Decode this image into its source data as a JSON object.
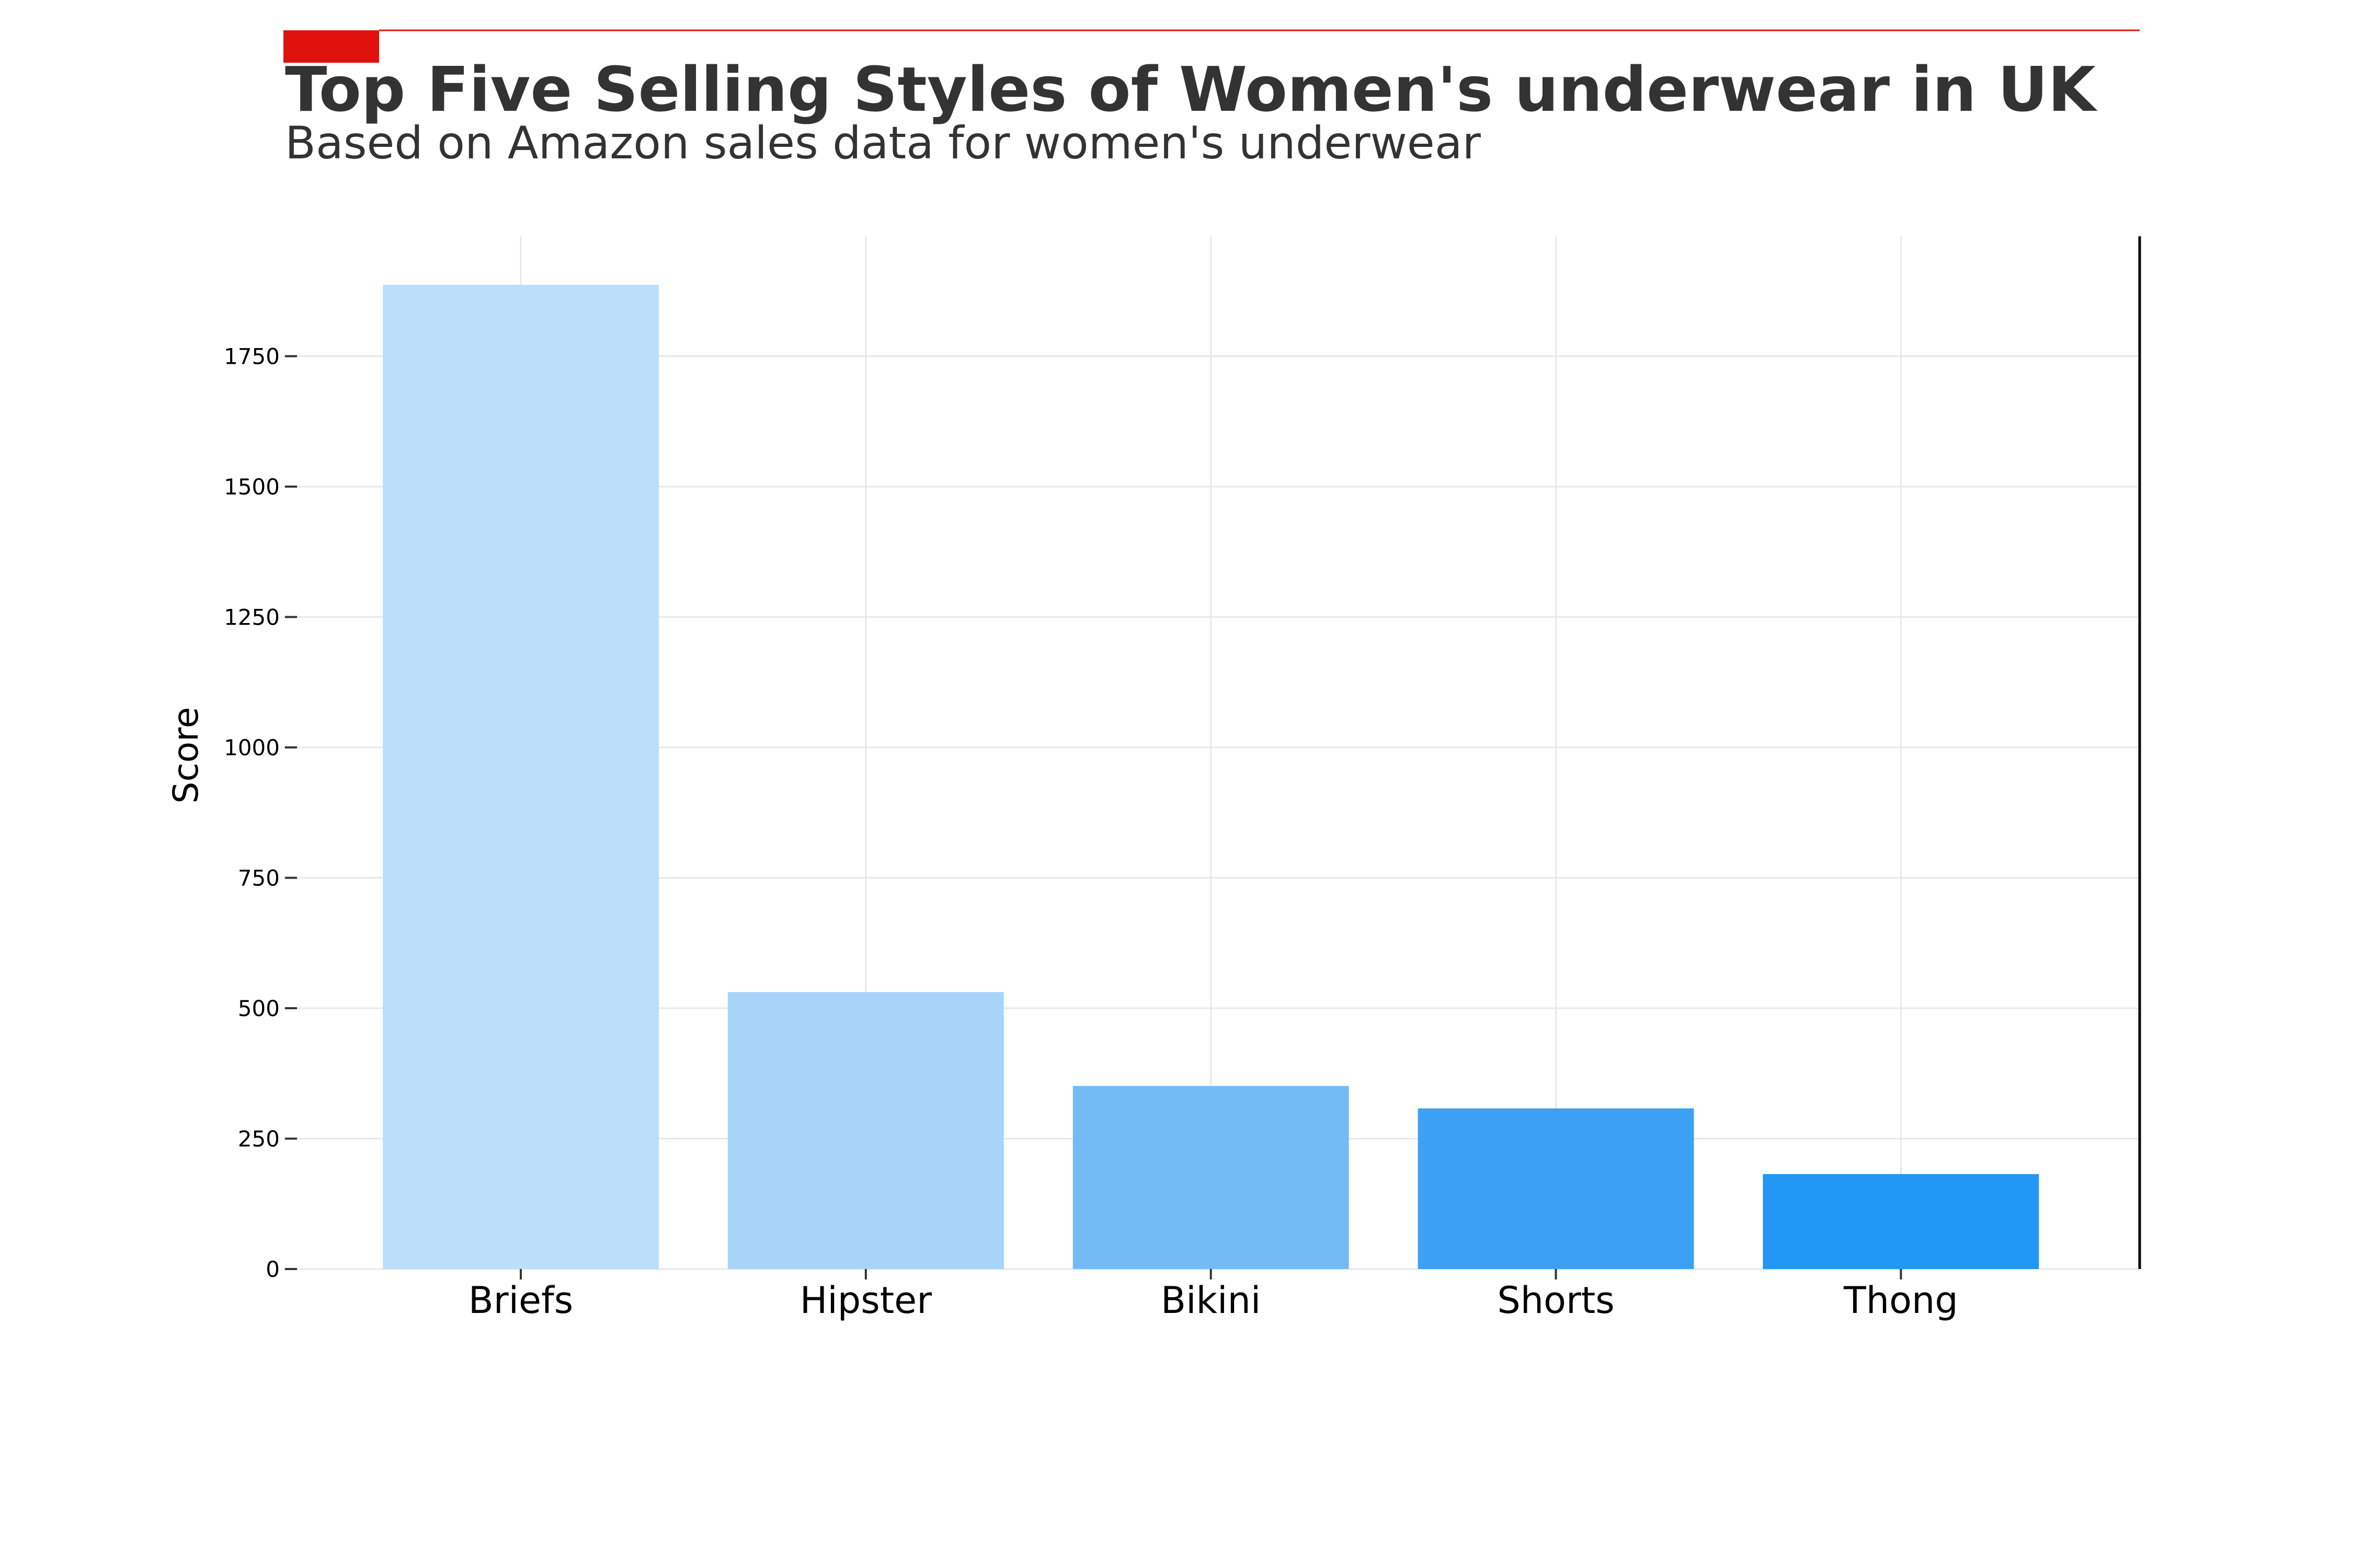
{
  "chart_data": {
    "type": "bar",
    "title": "Top Five Selling Styles of Women's underwear in UK",
    "subtitle": "Based on Amazon sales data for women's underwear",
    "xlabel": "",
    "ylabel": "Score",
    "categories": [
      "Briefs",
      "Hipster",
      "Bikini",
      "Shorts",
      "Thong"
    ],
    "values": [
      1887,
      531,
      351,
      308,
      182
    ],
    "bar_colors": [
      "#bbdefb",
      "#a8d4f9",
      "#74bbf6",
      "#3ca0f3",
      "#2196f3"
    ],
    "yticks": [
      0,
      250,
      500,
      750,
      1000,
      1250,
      1500,
      1750
    ],
    "ylim": [
      0,
      1980
    ],
    "grid": true,
    "accent_color": "#e0120c",
    "text_color": "#333333"
  }
}
